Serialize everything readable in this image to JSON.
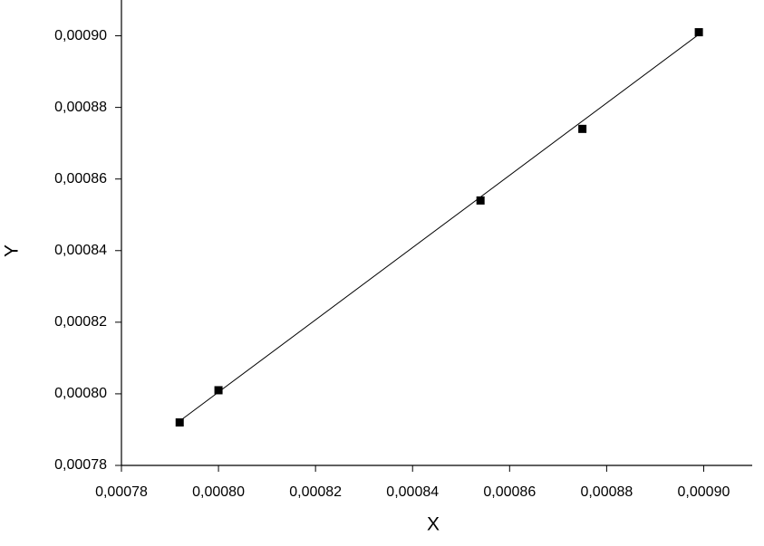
{
  "chart_data": {
    "type": "scatter",
    "x_label": "X",
    "y_label": "Y",
    "x": [
      0.000792,
      0.0008,
      0.000854,
      0.000875,
      0.000899
    ],
    "series": [
      {
        "values": [
          0.000792,
          0.000801,
          0.000854,
          0.000874,
          0.000901
        ],
        "color": "#000000"
      }
    ],
    "fit_line": {
      "x": [
        0.000792,
        0.000899
      ],
      "y": [
        0.0007924,
        0.0009004
      ],
      "color": "#000000"
    },
    "xlim": [
      0.00078,
      0.00091
    ],
    "ylim": [
      0.00078,
      0.00091
    ],
    "xticks": [
      {
        "value": 0.00078,
        "label": "0,00078"
      },
      {
        "value": 0.0008,
        "label": "0,00080"
      },
      {
        "value": 0.00082,
        "label": "0,00082"
      },
      {
        "value": 0.00084,
        "label": "0,00084"
      },
      {
        "value": 0.00086,
        "label": "0,00086"
      },
      {
        "value": 0.00088,
        "label": "0,00088"
      },
      {
        "value": 0.0009,
        "label": "0,00090"
      }
    ],
    "yticks": [
      {
        "value": 0.00078,
        "label": "0,00078"
      },
      {
        "value": 0.0008,
        "label": "0,00080"
      },
      {
        "value": 0.00082,
        "label": "0,00082"
      },
      {
        "value": 0.00084,
        "label": "0,00084"
      },
      {
        "value": 0.00086,
        "label": "0,00086"
      },
      {
        "value": 0.00088,
        "label": "0,00088"
      },
      {
        "value": 0.0009,
        "label": "0,00090"
      }
    ],
    "grid": false
  }
}
